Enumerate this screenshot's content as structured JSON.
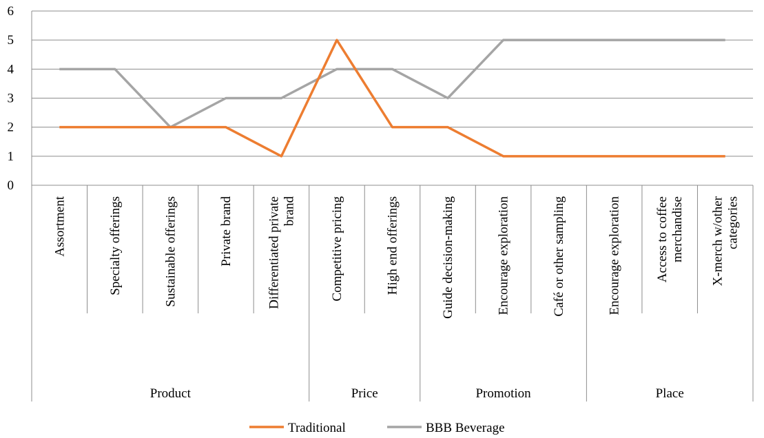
{
  "chart_data": {
    "type": "line",
    "groups": [
      {
        "name": "Product",
        "categories": [
          "Assortment",
          "Specialty offerings",
          "Sustainable offerings",
          "Private brand",
          "Differentiated private brand"
        ]
      },
      {
        "name": "Price",
        "categories": [
          "Competitive pricing",
          "High end offerings"
        ]
      },
      {
        "name": "Promotion",
        "categories": [
          "Guide decision-making",
          "Encourage exploration",
          "Café or other sampling"
        ]
      },
      {
        "name": "Place",
        "categories": [
          "Encourage exploration",
          "Access to coffee merchandise",
          "X-merch w/other categories"
        ]
      }
    ],
    "series": [
      {
        "name": "Traditional",
        "color": "#ed7d31",
        "values": [
          2,
          2,
          2,
          2,
          1,
          5,
          2,
          2,
          1,
          1,
          1,
          1,
          1
        ]
      },
      {
        "name": "BBB Beverage",
        "color": "#a5a5a5",
        "values": [
          4,
          4,
          2,
          3,
          3,
          4,
          4,
          3,
          5,
          5,
          5,
          5,
          5
        ]
      }
    ],
    "ylim": [
      0,
      6
    ],
    "yticks": [
      0,
      1,
      2,
      3,
      4,
      5,
      6
    ],
    "grid": true,
    "legend": "bottom"
  }
}
